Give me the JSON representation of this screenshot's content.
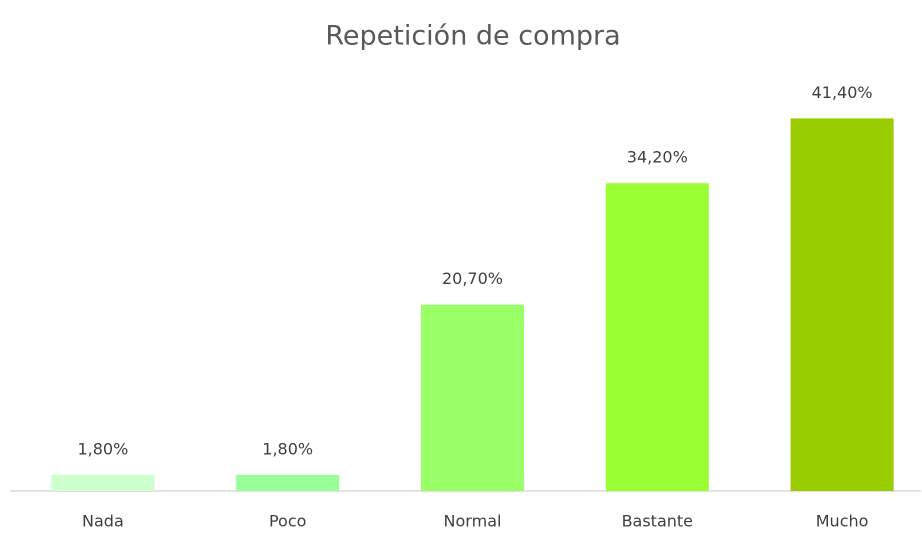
{
  "chart_data": {
    "type": "bar",
    "title": "Repetición de compra",
    "categories": [
      "Nada",
      "Poco",
      "Normal",
      "Bastante",
      "Mucho"
    ],
    "values": [
      1.8,
      1.8,
      20.7,
      34.2,
      41.4
    ],
    "value_labels": [
      "1,80%",
      "1,80%",
      "20,70%",
      "34,20%",
      "41,40%"
    ],
    "colors": [
      "#ccffcc",
      "#99ff99",
      "#99ff66",
      "#99ff33",
      "#99cc00"
    ],
    "ylim": [
      0,
      45
    ]
  }
}
